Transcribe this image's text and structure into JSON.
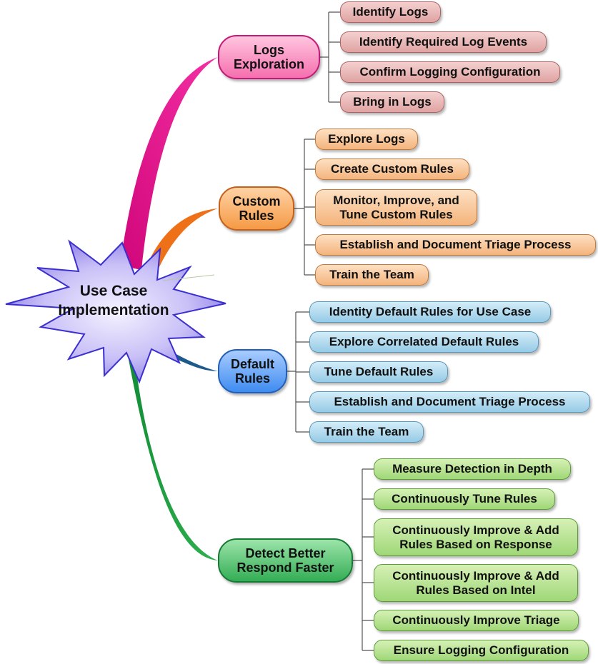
{
  "central": {
    "line1": "Use Case",
    "line2": "Implementation"
  },
  "branches": [
    {
      "line1": "Logs",
      "line2": "Exploration",
      "color": "#ec0c8e",
      "leaves": [
        {
          "line1": "Identify Logs"
        },
        {
          "line1": "Identify Required Log Events"
        },
        {
          "line1": "Confirm Logging Configuration"
        },
        {
          "line1": "Bring in Logs"
        }
      ]
    },
    {
      "line1": "Custom",
      "line2": "Rules",
      "color": "#f07a1c",
      "leaves": [
        {
          "line1": "Explore Logs"
        },
        {
          "line1": "Create Custom Rules"
        },
        {
          "line1": "Monitor, Improve, and",
          "line2": "Tune Custom Rules"
        },
        {
          "line1": "Establish and Document Triage Process"
        },
        {
          "line1": "Train the Team"
        }
      ]
    },
    {
      "line1": "Default",
      "line2": "Rules",
      "color": "#2f7de6",
      "leaves": [
        {
          "line1": "Identity Default Rules for Use Case"
        },
        {
          "line1": "Explore Correlated Default Rules"
        },
        {
          "line1": "Tune Default Rules"
        },
        {
          "line1": "Establish and Document Triage Process"
        },
        {
          "line1": "Train the Team"
        }
      ]
    },
    {
      "line1": "Detect Better",
      "line2": "Respond Faster",
      "color": "#1f9a44",
      "leaves": [
        {
          "line1": "Measure Detection in Depth"
        },
        {
          "line1": "Continuously Tune Rules"
        },
        {
          "line1": "Continuously Improve & Add",
          "line2": "Rules Based on Response"
        },
        {
          "line1": "Continuously Improve & Add",
          "line2": "Rules Based on Intel"
        },
        {
          "line1": "Continuously Improve Triage"
        },
        {
          "line1": "Ensure Logging Configuration"
        }
      ]
    }
  ]
}
